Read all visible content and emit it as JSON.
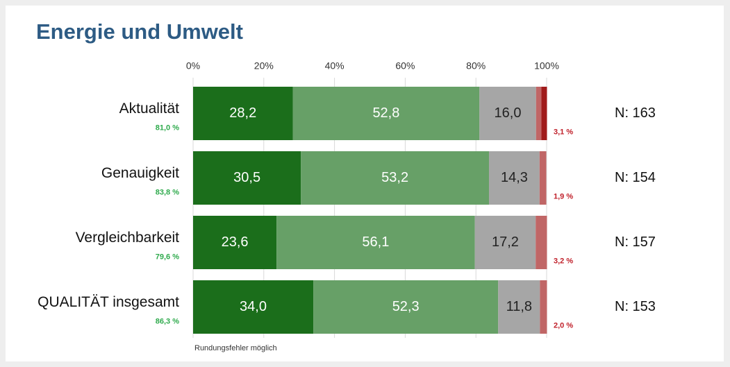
{
  "chart_data": {
    "type": "stacked-bar-horizontal",
    "title": "Energie und Umwelt",
    "categories": [
      "Aktualität",
      "Genauigkeit",
      "Vergleichbarkeit",
      "QUALITÄT insgesamt"
    ],
    "series": [
      {
        "color": "#1b6e1b",
        "values": [
          28.2,
          30.5,
          23.6,
          34.0
        ],
        "value_labels": [
          "28,2",
          "30,5",
          "23,6",
          "34,0"
        ],
        "label_color": "#ffffff"
      },
      {
        "color": "#67a067",
        "values": [
          52.8,
          53.2,
          56.1,
          52.3
        ],
        "value_labels": [
          "52,8",
          "53,2",
          "56,1",
          "52,3"
        ],
        "label_color": "#ffffff"
      },
      {
        "color": "#a6a6a6",
        "values": [
          16.0,
          14.3,
          17.2,
          11.8
        ],
        "value_labels": [
          "16,0",
          "14,3",
          "17,2",
          "11,8"
        ],
        "label_color": "#222222"
      },
      {
        "color": "#c06666",
        "values": [
          1.5,
          1.9,
          3.2,
          2.0
        ]
      },
      {
        "color": "#a01b1b",
        "values": [
          1.6,
          0,
          0,
          0
        ]
      }
    ],
    "positive_labels": [
      "81,0 %",
      "83,8 %",
      "79,6 %",
      "86,3 %"
    ],
    "negative_labels": [
      "3,1 %",
      "1,9 %",
      "3,2 %",
      "2,0 %"
    ],
    "n_labels": [
      "N: 163",
      "N: 154",
      "N: 157",
      "N: 153"
    ],
    "xlim": [
      0,
      100
    ],
    "xticks": [
      {
        "value": 0,
        "label": "0%"
      },
      {
        "value": 20,
        "label": "20%"
      },
      {
        "value": 40,
        "label": "40%"
      },
      {
        "value": 60,
        "label": "60%"
      },
      {
        "value": 80,
        "label": "80%"
      },
      {
        "value": 100,
        "label": "100%"
      }
    ],
    "grid": true,
    "note": "Rundungsfehler möglich"
  }
}
